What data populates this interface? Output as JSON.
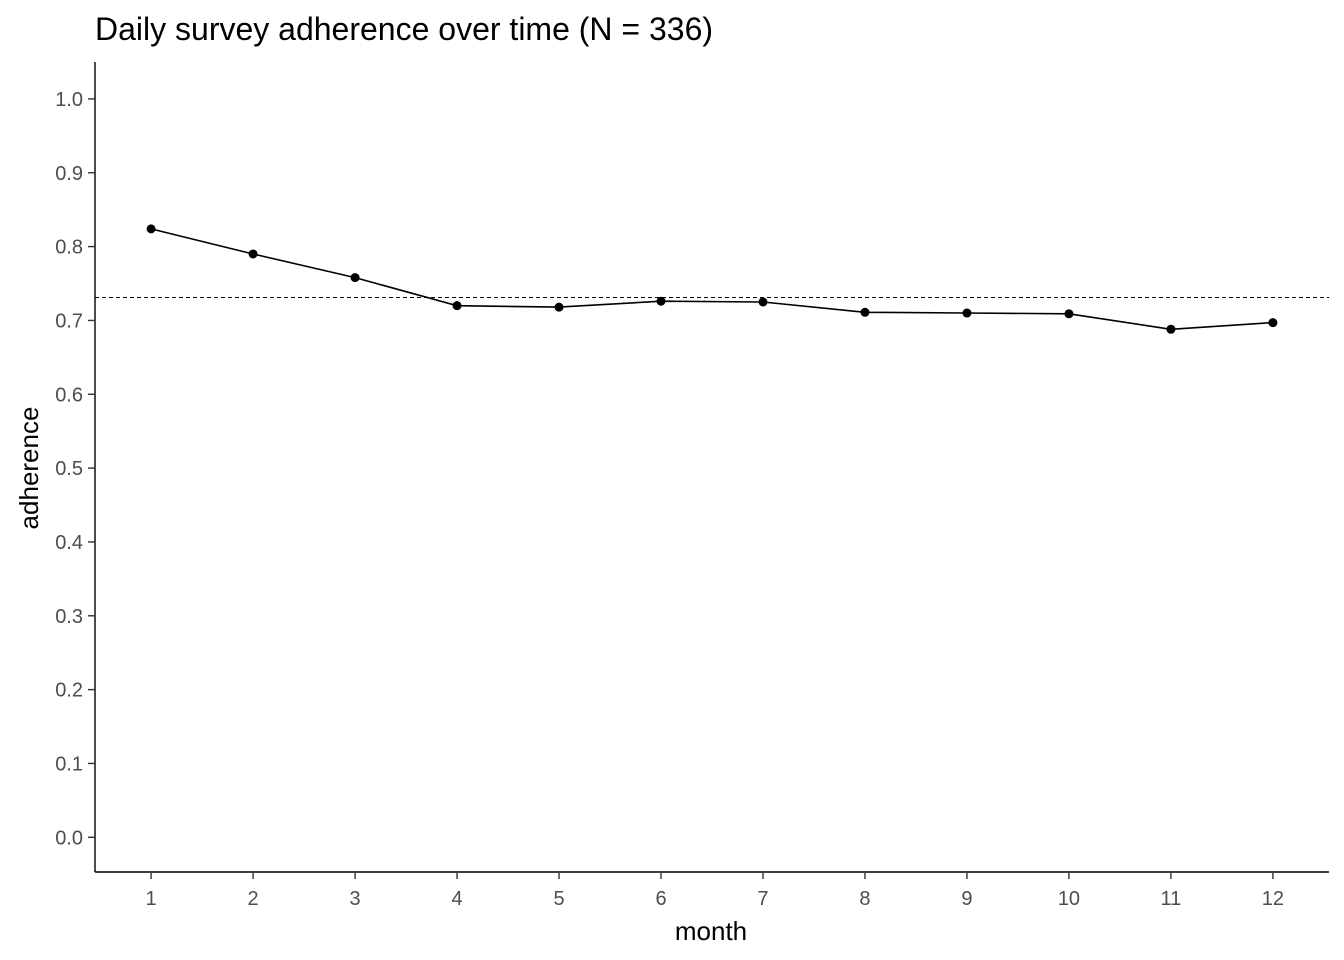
{
  "chart_data": {
    "type": "line",
    "title": "Daily survey adherence over time (N = 336)",
    "xlabel": "month",
    "ylabel": "adherence",
    "x": [
      1,
      2,
      3,
      4,
      5,
      6,
      7,
      8,
      9,
      10,
      11,
      12
    ],
    "x_tick_labels": [
      "1",
      "2",
      "3",
      "4",
      "5",
      "6",
      "7",
      "8",
      "9",
      "10",
      "11",
      "12"
    ],
    "y_ticks": [
      0.0,
      0.1,
      0.2,
      0.3,
      0.4,
      0.5,
      0.6,
      0.7,
      0.8,
      0.9,
      1.0
    ],
    "y_tick_labels": [
      "0.0",
      "0.1",
      "0.2",
      "0.3",
      "0.4",
      "0.5",
      "0.6",
      "0.7",
      "0.8",
      "0.9",
      "1.0"
    ],
    "xlim": [
      0.45,
      12.55
    ],
    "ylim": [
      -0.047,
      1.05
    ],
    "grid": false,
    "series": [
      {
        "values": [
          0.824,
          0.79,
          0.758,
          0.72,
          0.718,
          0.726,
          0.725,
          0.711,
          0.71,
          0.709,
          0.688,
          0.697
        ],
        "color": "#000000"
      }
    ],
    "reference_line": {
      "y": 0.731,
      "style": "dashed",
      "color": "#000000"
    }
  }
}
